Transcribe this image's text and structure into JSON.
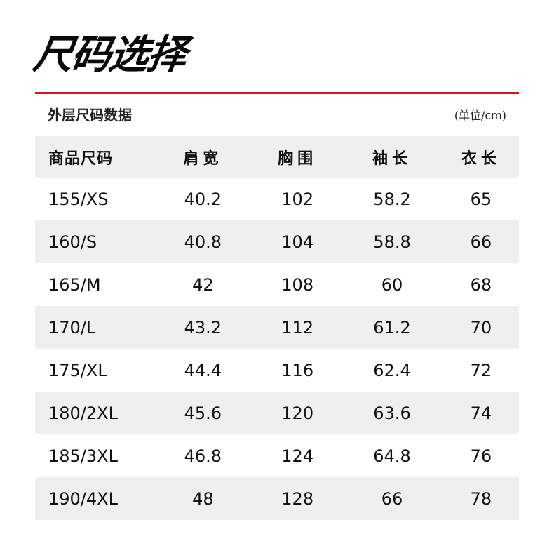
{
  "title": "尺码选择",
  "accent_color": "#d9141e",
  "subtitle": "外层尺码数据",
  "unit": "(单位/cm)",
  "table": {
    "headers": [
      "商品尺码",
      "肩宽",
      "胸围",
      "袖长",
      "衣长"
    ],
    "rows": [
      [
        "155/XS",
        "40.2",
        "102",
        "58.2",
        "65"
      ],
      [
        "160/S",
        "40.8",
        "104",
        "58.8",
        "66"
      ],
      [
        "165/M",
        "42",
        "108",
        "60",
        "68"
      ],
      [
        "170/L",
        "43.2",
        "112",
        "61.2",
        "70"
      ],
      [
        "175/XL",
        "44.4",
        "116",
        "62.4",
        "72"
      ],
      [
        "180/2XL",
        "45.6",
        "120",
        "63.6",
        "74"
      ],
      [
        "185/3XL",
        "46.8",
        "124",
        "64.8",
        "76"
      ],
      [
        "190/4XL",
        "48",
        "128",
        "66",
        "78"
      ]
    ]
  }
}
